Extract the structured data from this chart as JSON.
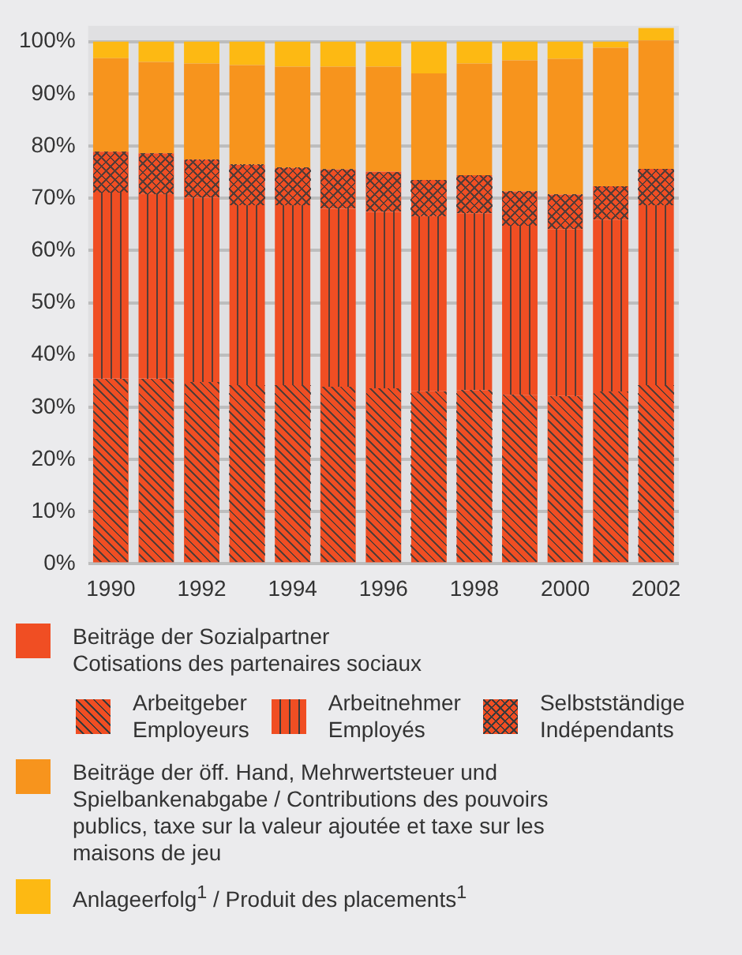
{
  "chart_data": {
    "type": "bar",
    "stacked": true,
    "categories": [
      "1990",
      null,
      "1992",
      null,
      "1994",
      null,
      "1996",
      null,
      "1998",
      null,
      "2000",
      null,
      "2002"
    ],
    "legend_title": "Beiträge der Sozialpartner\nCotisations des partenaires sociaux",
    "series": [
      {
        "name": "Arbeitgeber\nEmployeurs",
        "color": "#f04e23",
        "values": [
          35.5,
          35.5,
          34.8,
          34.2,
          34.2,
          33.9,
          33.6,
          33.1,
          33.2,
          32.3,
          32.2,
          33.0,
          34.2
        ]
      },
      {
        "name": "Arbeitnehmer\nEmployés",
        "color": "#f04e23",
        "values": [
          35.6,
          35.4,
          35.3,
          34.6,
          34.6,
          34.1,
          33.8,
          33.5,
          33.9,
          32.3,
          31.9,
          32.9,
          34.6
        ]
      },
      {
        "name": "Selbstständige\nIndépendants",
        "color": "#f04e23",
        "values": [
          7.8,
          7.7,
          7.3,
          7.6,
          7.0,
          7.5,
          7.7,
          6.9,
          7.3,
          6.7,
          6.6,
          6.4,
          6.8
        ]
      },
      {
        "name": "Beiträge der öff. Hand, Mehrwertsteuer und Spielbankenabgabe / Contributions des pouvoirs publics, taxe sur la valeur ajoutée et taxe sur les maisons de jeu",
        "color": "#f7941d",
        "values": [
          17.9,
          17.5,
          18.4,
          19.1,
          19.4,
          19.7,
          20.1,
          20.4,
          21.4,
          25.1,
          26.0,
          26.5,
          24.6
        ]
      },
      {
        "name": "Anlageerfolg$^{1}$ / Produit des placements$^{1}$",
        "color": "#fdb913",
        "values": [
          3.2,
          3.9,
          4.2,
          4.5,
          4.8,
          4.8,
          4.8,
          6.1,
          4.2,
          3.6,
          3.3,
          1.2,
          2.4
        ]
      }
    ],
    "ylim": [
      0,
      103
    ],
    "yticks": [
      {
        "value": 0,
        "label": "0%"
      },
      {
        "value": 10,
        "label": "10%"
      },
      {
        "value": 20,
        "label": "20%"
      },
      {
        "value": 30,
        "label": "30%"
      },
      {
        "value": 40,
        "label": "40%"
      },
      {
        "value": 50,
        "label": "50%"
      },
      {
        "value": 60,
        "label": "60%"
      },
      {
        "value": 70,
        "label": "70%"
      },
      {
        "value": 80,
        "label": "80%"
      },
      {
        "value": 90,
        "label": "90%"
      },
      {
        "value": 100,
        "label": "100%"
      }
    ],
    "grid": "y",
    "legend": "bottom"
  }
}
